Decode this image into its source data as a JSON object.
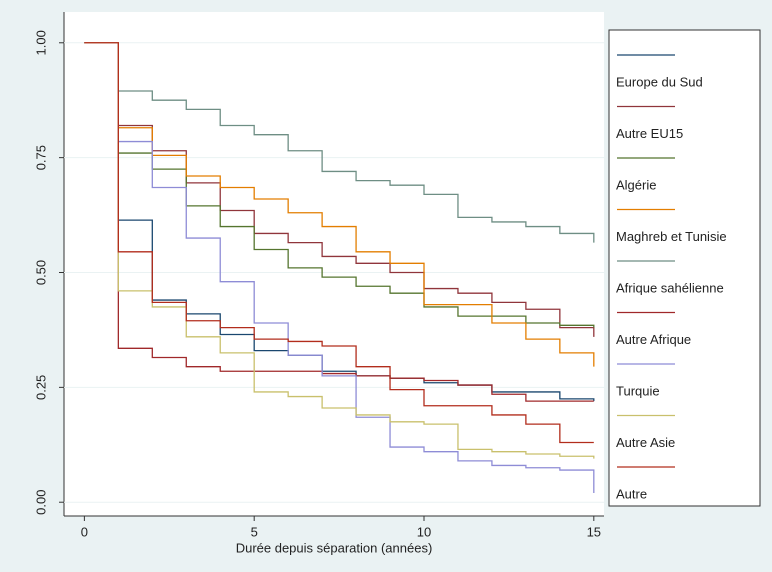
{
  "chart_data": {
    "type": "step",
    "xlabel": "Durée depuis séparation (années)",
    "x": [
      0,
      1,
      2,
      3,
      4,
      5,
      6,
      7,
      8,
      9,
      10,
      11,
      12,
      13,
      14,
      15
    ],
    "xlim": [
      -0.6,
      15.3
    ],
    "ylim": [
      -0.03,
      1.067
    ],
    "xticks": [
      0,
      5,
      10,
      15
    ],
    "yticks": [
      {
        "value": 0,
        "label": "0.00"
      },
      {
        "value": 0.25,
        "label": "0.25"
      },
      {
        "value": 0.5,
        "label": "0.50"
      },
      {
        "value": 0.75,
        "label": "0.75"
      },
      {
        "value": 1,
        "label": "1.00"
      }
    ],
    "grid": true,
    "legend": "right",
    "series": [
      {
        "name": "Europe du Sud",
        "color": "#1a476f",
        "values": [
          1,
          0.614,
          0.44,
          0.41,
          0.365,
          0.33,
          0.32,
          0.285,
          0.275,
          0.27,
          0.26,
          0.255,
          0.24,
          0.24,
          0.225,
          0.22
        ]
      },
      {
        "name": "Autre EU15",
        "color": "#90353b",
        "values": [
          1,
          0.82,
          0.765,
          0.695,
          0.635,
          0.585,
          0.565,
          0.535,
          0.52,
          0.5,
          0.465,
          0.455,
          0.435,
          0.42,
          0.38,
          0.36
        ]
      },
      {
        "name": "Algérie",
        "color": "#55752f",
        "values": [
          1,
          0.76,
          0.725,
          0.645,
          0.6,
          0.55,
          0.51,
          0.49,
          0.47,
          0.455,
          0.425,
          0.405,
          0.405,
          0.39,
          0.385,
          0.38
        ]
      },
      {
        "name": "Maghreb et Tunisie",
        "color": "#e37e00",
        "values": [
          1,
          0.815,
          0.755,
          0.71,
          0.685,
          0.66,
          0.63,
          0.6,
          0.545,
          0.52,
          0.43,
          0.43,
          0.39,
          0.355,
          0.325,
          0.295
        ]
      },
      {
        "name": "Afrique sahélienne",
        "color": "#6e8e84",
        "values": [
          1,
          0.895,
          0.875,
          0.855,
          0.82,
          0.8,
          0.765,
          0.72,
          0.7,
          0.69,
          0.67,
          0.62,
          0.61,
          0.6,
          0.585,
          0.565
        ]
      },
      {
        "name": "Autre Afrique",
        "color": "#a0282a",
        "values": [
          1,
          0.335,
          0.315,
          0.295,
          0.285,
          0.285,
          0.285,
          0.28,
          0.275,
          0.27,
          0.265,
          0.255,
          0.235,
          0.22,
          0.22,
          0.22
        ]
      },
      {
        "name": "Turquie",
        "color": "#8e8cd6",
        "values": [
          1,
          0.785,
          0.685,
          0.575,
          0.48,
          0.39,
          0.32,
          0.275,
          0.185,
          0.12,
          0.11,
          0.09,
          0.08,
          0.075,
          0.07,
          0.02
        ]
      },
      {
        "name": "Autre Asie",
        "color": "#c9c06c",
        "values": [
          1,
          0.46,
          0.425,
          0.36,
          0.325,
          0.24,
          0.23,
          0.205,
          0.19,
          0.175,
          0.17,
          0.115,
          0.11,
          0.105,
          0.1,
          0.095
        ]
      },
      {
        "name": "Autre",
        "color": "#b22d1c",
        "values": [
          1,
          0.545,
          0.435,
          0.395,
          0.38,
          0.355,
          0.35,
          0.34,
          0.295,
          0.245,
          0.21,
          0.21,
          0.19,
          0.17,
          0.13,
          0.13
        ]
      }
    ]
  }
}
